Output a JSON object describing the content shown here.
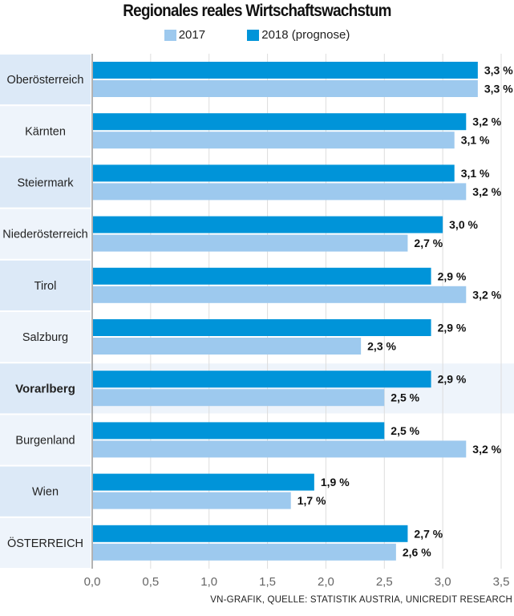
{
  "chart_data": {
    "type": "bar",
    "orientation": "horizontal",
    "title": "Regionales reales Wirtschaftswachstum",
    "categories": [
      "Oberösterreich",
      "Kärnten",
      "Steiermark",
      "Niederösterreich",
      "Tirol",
      "Salzburg",
      "Vorarlberg",
      "Burgenland",
      "Wien",
      "ÖSTERREICH"
    ],
    "highlighted_category": "Vorarlberg",
    "series": [
      {
        "name": "2018 (prognose)",
        "color": "#0094d9",
        "values": [
          3.3,
          3.2,
          3.1,
          3.0,
          2.9,
          2.9,
          2.9,
          2.5,
          1.9,
          2.7
        ],
        "labels": [
          "3,3 %",
          "3,2 %",
          "3,1 %",
          "3,0 %",
          "2,9 %",
          "2,9 %",
          "2,9 %",
          "2,5 %",
          "1,9 %",
          "2,7 %"
        ]
      },
      {
        "name": "2017",
        "color": "#9dc9ee",
        "values": [
          3.3,
          3.1,
          3.2,
          2.7,
          3.2,
          2.3,
          2.5,
          3.2,
          1.7,
          2.6
        ],
        "labels": [
          "3,3 %",
          "3,1 %",
          "3,2 %",
          "2,7 %",
          "3,2 %",
          "2,3 %",
          "2,5 %",
          "3,2 %",
          "1,7 %",
          "2,6 %"
        ]
      }
    ],
    "legend_order": [
      "2017",
      "2018 (prognose)"
    ],
    "legend_placement": "top",
    "xlim": [
      0,
      3.5
    ],
    "xticks": [
      0,
      0.5,
      1.0,
      1.5,
      2.0,
      2.5,
      3.0,
      3.5
    ],
    "xtick_labels": [
      "0,0",
      "0,5",
      "1,0",
      "1,5",
      "2,0",
      "2,5",
      "3,0",
      "3,5"
    ],
    "grid": true,
    "xlabel": "",
    "ylabel": ""
  },
  "source": "VN-GRAFIK, QUELLE: STATISTIK AUSTRIA, UNICREDIT RESEARCH"
}
